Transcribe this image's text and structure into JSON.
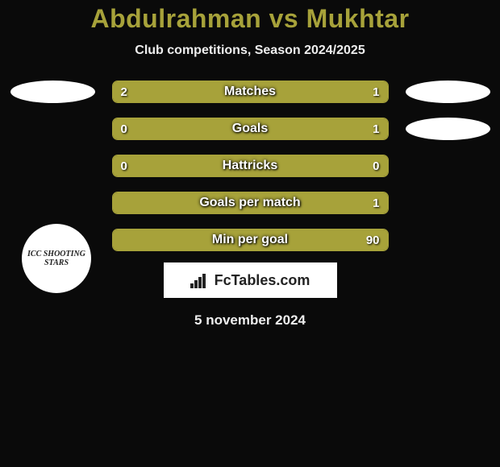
{
  "title": "Abdulrahman vs Mukhtar",
  "subtitle": "Club competitions, Season 2024/2025",
  "date": "5 november 2024",
  "branding_text": "FcTables.com",
  "logo_left_text": "ICC SHOOTING STARS",
  "colors": {
    "accent": "#a7a23a",
    "background": "#0a0a0a",
    "bar_bg": "#1a1a1a",
    "text": "#ffffff"
  },
  "stats": [
    {
      "label": "Matches",
      "left_val": "2",
      "right_val": "1",
      "left_pct": 67,
      "right_pct": 33
    },
    {
      "label": "Goals",
      "left_val": "0",
      "right_val": "1",
      "left_pct": 18,
      "right_pct": 82
    },
    {
      "label": "Hattricks",
      "left_val": "0",
      "right_val": "0",
      "left_pct": 100,
      "right_pct": 0
    },
    {
      "label": "Goals per match",
      "left_val": "",
      "right_val": "1",
      "left_pct": 0,
      "right_pct": 100
    },
    {
      "label": "Min per goal",
      "left_val": "",
      "right_val": "90",
      "left_pct": 0,
      "right_pct": 100
    }
  ],
  "left_badges_visible": [
    true,
    false
  ],
  "right_badges_visible": [
    true,
    true
  ]
}
